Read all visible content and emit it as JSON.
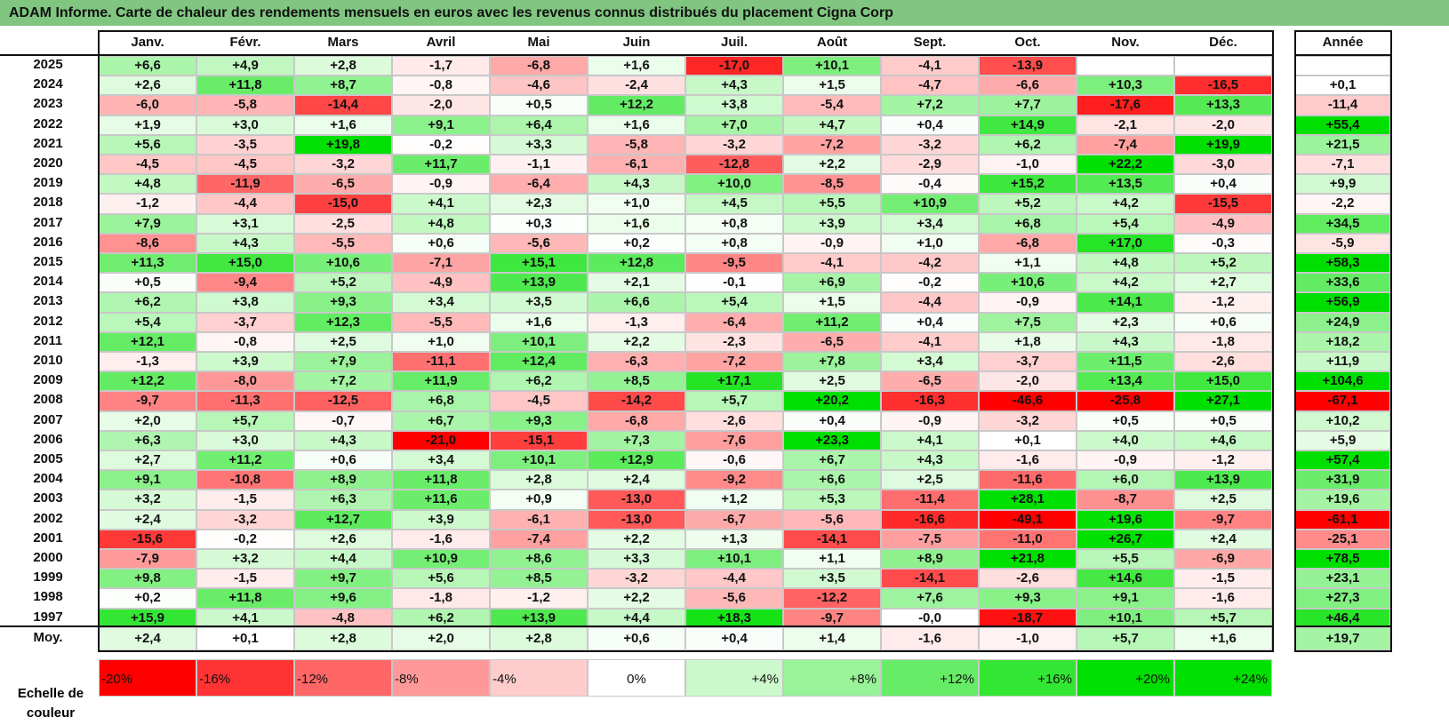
{
  "title": "ADAM Informe. Carte de chaleur des rendements mensuels en euros avec les revenus connus distribués du placement Cigna Corp",
  "colors": {
    "title_bg": "#80c680",
    "negative": "#ff0000",
    "positive": "#00e000",
    "neutral": "#ffffff"
  },
  "chart_data": {
    "type": "heatmap",
    "title": "ADAM Informe. Carte de chaleur des rendements mensuels en euros avec les revenus connus distribués du placement Cigna Corp",
    "columns": [
      "Janv.",
      "Févr.",
      "Mars",
      "Avril",
      "Mai",
      "Juin",
      "Juil.",
      "Août",
      "Sept.",
      "Oct.",
      "Nov.",
      "Déc."
    ],
    "year_header": "Année",
    "rows": [
      {
        "year": "2025",
        "values": [
          "+6,6",
          "+4,9",
          "+2,8",
          "-1,7",
          "-6,8",
          "+1,6",
          "-17,0",
          "+10,1",
          "-4,1",
          "-13,9",
          "",
          ""
        ],
        "annual": ""
      },
      {
        "year": "2024",
        "values": [
          "+2,6",
          "+11,8",
          "+8,7",
          "-0,8",
          "-4,6",
          "-2,4",
          "+4,3",
          "+1,5",
          "-4,7",
          "-6,6",
          "+10,3",
          "-16,5"
        ],
        "annual": "+0,1"
      },
      {
        "year": "2023",
        "values": [
          "-6,0",
          "-5,8",
          "-14,4",
          "-2,0",
          "+0,5",
          "+12,2",
          "+3,8",
          "-5,4",
          "+7,2",
          "+7,7",
          "-17,6",
          "+13,3"
        ],
        "annual": "-11,4"
      },
      {
        "year": "2022",
        "values": [
          "+1,9",
          "+3,0",
          "+1,6",
          "+9,1",
          "+6,4",
          "+1,6",
          "+7,0",
          "+4,7",
          "+0,4",
          "+14,9",
          "-2,1",
          "-2,0"
        ],
        "annual": "+55,4"
      },
      {
        "year": "2021",
        "values": [
          "+5,6",
          "-3,5",
          "+19,8",
          "-0,2",
          "+3,3",
          "-5,8",
          "-3,2",
          "-7,2",
          "-3,2",
          "+6,2",
          "-7,4",
          "+19,9"
        ],
        "annual": "+21,5"
      },
      {
        "year": "2020",
        "values": [
          "-4,5",
          "-4,5",
          "-3,2",
          "+11,7",
          "-1,1",
          "-6,1",
          "-12,8",
          "+2,2",
          "-2,9",
          "-1,0",
          "+22,2",
          "-3,0"
        ],
        "annual": "-7,1"
      },
      {
        "year": "2019",
        "values": [
          "+4,8",
          "-11,9",
          "-6,5",
          "-0,9",
          "-6,4",
          "+4,3",
          "+10,0",
          "-8,5",
          "-0,4",
          "+15,2",
          "+13,5",
          "+0,4"
        ],
        "annual": "+9,9"
      },
      {
        "year": "2018",
        "values": [
          "-1,2",
          "-4,4",
          "-15,0",
          "+4,1",
          "+2,3",
          "+1,0",
          "+4,5",
          "+5,5",
          "+10,9",
          "+5,2",
          "+4,2",
          "-15,5"
        ],
        "annual": "-2,2"
      },
      {
        "year": "2017",
        "values": [
          "+7,9",
          "+3,1",
          "-2,5",
          "+4,8",
          "+0,3",
          "+1,6",
          "+0,8",
          "+3,9",
          "+3,4",
          "+6,8",
          "+5,4",
          "-4,9"
        ],
        "annual": "+34,5"
      },
      {
        "year": "2016",
        "values": [
          "-8,6",
          "+4,3",
          "-5,5",
          "+0,6",
          "-5,6",
          "+0,2",
          "+0,8",
          "-0,9",
          "+1,0",
          "-6,8",
          "+17,0",
          "-0,3"
        ],
        "annual": "-5,9"
      },
      {
        "year": "2015",
        "values": [
          "+11,3",
          "+15,0",
          "+10,6",
          "-7,1",
          "+15,1",
          "+12,8",
          "-9,5",
          "-4,1",
          "-4,2",
          "+1,1",
          "+4,8",
          "+5,2"
        ],
        "annual": "+58,3"
      },
      {
        "year": "2014",
        "values": [
          "+0,5",
          "-9,4",
          "+5,2",
          "-4,9",
          "+13,9",
          "+2,1",
          "-0,1",
          "+6,9",
          "-0,2",
          "+10,6",
          "+4,2",
          "+2,7"
        ],
        "annual": "+33,6"
      },
      {
        "year": "2013",
        "values": [
          "+6,2",
          "+3,8",
          "+9,3",
          "+3,4",
          "+3,5",
          "+6,6",
          "+5,4",
          "+1,5",
          "-4,4",
          "-0,9",
          "+14,1",
          "-1,2"
        ],
        "annual": "+56,9"
      },
      {
        "year": "2012",
        "values": [
          "+5,4",
          "-3,7",
          "+12,3",
          "-5,5",
          "+1,6",
          "-1,3",
          "-6,4",
          "+11,2",
          "+0,4",
          "+7,5",
          "+2,3",
          "+0,6"
        ],
        "annual": "+24,9"
      },
      {
        "year": "2011",
        "values": [
          "+12,1",
          "-0,8",
          "+2,5",
          "+1,0",
          "+10,1",
          "+2,2",
          "-2,3",
          "-6,5",
          "-4,1",
          "+1,8",
          "+4,3",
          "-1,8"
        ],
        "annual": "+18,2"
      },
      {
        "year": "2010",
        "values": [
          "-1,3",
          "+3,9",
          "+7,9",
          "-11,1",
          "+12,4",
          "-6,3",
          "-7,2",
          "+7,8",
          "+3,4",
          "-3,7",
          "+11,5",
          "-2,6"
        ],
        "annual": "+11,9"
      },
      {
        "year": "2009",
        "values": [
          "+12,2",
          "-8,0",
          "+7,2",
          "+11,9",
          "+6,2",
          "+8,5",
          "+17,1",
          "+2,5",
          "-6,5",
          "-2,0",
          "+13,4",
          "+15,0"
        ],
        "annual": "+104,6"
      },
      {
        "year": "2008",
        "values": [
          "-9,7",
          "-11,3",
          "-12,5",
          "+6,8",
          "-4,5",
          "-14,2",
          "+5,7",
          "+20,2",
          "-16,3",
          "-46,6",
          "-25,8",
          "+27,1"
        ],
        "annual": "-67,1"
      },
      {
        "year": "2007",
        "values": [
          "+2,0",
          "+5,7",
          "-0,7",
          "+6,7",
          "+9,3",
          "-6,8",
          "-2,6",
          "+0,4",
          "-0,9",
          "-3,2",
          "+0,5",
          "+0,5"
        ],
        "annual": "+10,2"
      },
      {
        "year": "2006",
        "values": [
          "+6,3",
          "+3,0",
          "+4,3",
          "-21,0",
          "-15,1",
          "+7,3",
          "-7,6",
          "+23,3",
          "+4,1",
          "+0,1",
          "+4,0",
          "+4,6"
        ],
        "annual": "+5,9"
      },
      {
        "year": "2005",
        "values": [
          "+2,7",
          "+11,2",
          "+0,6",
          "+3,4",
          "+10,1",
          "+12,9",
          "-0,6",
          "+6,7",
          "+4,3",
          "-1,6",
          "-0,9",
          "-1,2"
        ],
        "annual": "+57,4"
      },
      {
        "year": "2004",
        "values": [
          "+9,1",
          "-10,8",
          "+8,9",
          "+11,8",
          "+2,8",
          "+2,4",
          "-9,2",
          "+6,6",
          "+2,5",
          "-11,6",
          "+6,0",
          "+13,9"
        ],
        "annual": "+31,9"
      },
      {
        "year": "2003",
        "values": [
          "+3,2",
          "-1,5",
          "+6,3",
          "+11,6",
          "+0,9",
          "-13,0",
          "+1,2",
          "+5,3",
          "-11,4",
          "+28,1",
          "-8,7",
          "+2,5"
        ],
        "annual": "+19,6"
      },
      {
        "year": "2002",
        "values": [
          "+2,4",
          "-3,2",
          "+12,7",
          "+3,9",
          "-6,1",
          "-13,0",
          "-6,7",
          "-5,6",
          "-16,6",
          "-49,1",
          "+19,6",
          "-9,7"
        ],
        "annual": "-61,1"
      },
      {
        "year": "2001",
        "values": [
          "-15,6",
          "-0,2",
          "+2,6",
          "-1,6",
          "-7,4",
          "+2,2",
          "+1,3",
          "-14,1",
          "-7,5",
          "-11,0",
          "+26,7",
          "+2,4"
        ],
        "annual": "-25,1"
      },
      {
        "year": "2000",
        "values": [
          "-7,9",
          "+3,2",
          "+4,4",
          "+10,9",
          "+8,6",
          "+3,3",
          "+10,1",
          "+1,1",
          "+8,9",
          "+21,8",
          "+5,5",
          "-6,9"
        ],
        "annual": "+78,5"
      },
      {
        "year": "1999",
        "values": [
          "+9,8",
          "-1,5",
          "+9,7",
          "+5,6",
          "+8,5",
          "-3,2",
          "-4,4",
          "+3,5",
          "-14,1",
          "-2,6",
          "+14,6",
          "-1,5"
        ],
        "annual": "+23,1"
      },
      {
        "year": "1998",
        "values": [
          "+0,2",
          "+11,8",
          "+9,6",
          "-1,8",
          "-1,2",
          "+2,2",
          "-5,6",
          "-12,2",
          "+7,6",
          "+9,3",
          "+9,1",
          "-1,6"
        ],
        "annual": "+27,3"
      },
      {
        "year": "1997",
        "values": [
          "+15,9",
          "+4,1",
          "-4,8",
          "+6,2",
          "+13,9",
          "+4,4",
          "+18,3",
          "-9,7",
          "-0,0",
          "-18,7",
          "+10,1",
          "+5,7"
        ],
        "annual": "+46,4"
      }
    ],
    "average": {
      "label": "Moy.",
      "values": [
        "+2,4",
        "+0,1",
        "+2,8",
        "+2,0",
        "+2,8",
        "+0,6",
        "+0,4",
        "+1,4",
        "-1,6",
        "-1,0",
        "+5,7",
        "+1,6"
      ],
      "annual": "+19,7"
    },
    "color_scale": {
      "label": "Echelle de couleur",
      "stops": [
        "-20%",
        "-16%",
        "-12%",
        "-8%",
        "-4%",
        "0%",
        "+4%",
        "+8%",
        "+12%",
        "+16%",
        "+20%",
        "+24%"
      ],
      "stop_values": [
        -20,
        -16,
        -12,
        -8,
        -4,
        0,
        4,
        8,
        12,
        16,
        20,
        24
      ]
    }
  }
}
